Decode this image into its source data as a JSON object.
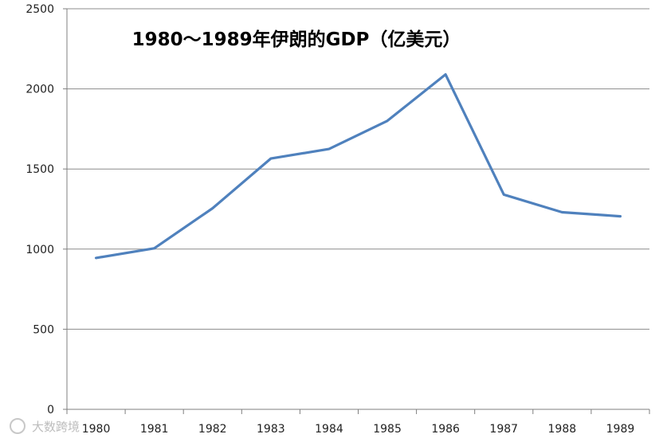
{
  "chart_data": {
    "type": "line",
    "title": "1980～1989年伊朗的GDP（亿美元）",
    "xlabel": "",
    "ylabel": "",
    "categories": [
      "1980",
      "1981",
      "1982",
      "1983",
      "1984",
      "1985",
      "1986",
      "1987",
      "1988",
      "1989"
    ],
    "series": [
      {
        "values": [
          945,
          1005,
          1255,
          1565,
          1625,
          1800,
          2090,
          1340,
          1230,
          1205
        ],
        "color": "#4f81bd"
      }
    ],
    "ylim": [
      0,
      2500
    ],
    "yticks": [
      "0",
      "500",
      "1000",
      "1500",
      "2000",
      "2500"
    ],
    "grid": true,
    "legend": "none"
  },
  "watermark": {
    "text": "大数跨境"
  }
}
